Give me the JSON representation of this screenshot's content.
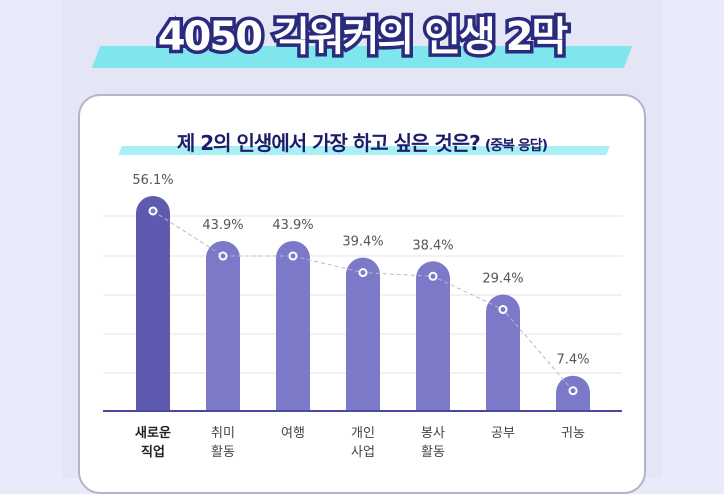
{
  "header": {
    "title": "4050 긱워커의 인생 2막"
  },
  "chart_data": {
    "type": "bar",
    "title": "제 2의 인생에서 가장 하고 싶은 것은?",
    "subtitle": "(중복 응답)",
    "categories": [
      [
        "새로운",
        "직업"
      ],
      [
        "취미",
        "활동"
      ],
      [
        "여행"
      ],
      [
        "개인",
        "사업"
      ],
      [
        "봉사",
        "활동"
      ],
      [
        "공부"
      ],
      [
        "귀농"
      ]
    ],
    "values": [
      56.1,
      43.9,
      43.9,
      39.4,
      38.4,
      29.4,
      7.4
    ],
    "value_labels": [
      "56.1%",
      "43.9%",
      "43.9%",
      "39.4%",
      "38.4%",
      "29.4%",
      "7.4%"
    ],
    "unit": "%",
    "ylim": [
      0,
      56.1
    ],
    "grid": true,
    "highlight_index": 0,
    "colors": {
      "bar": "#7b79c8",
      "bar_highlight": "#5e5ab0",
      "axis": "#4a4aa0",
      "grid": "#e4e4ee",
      "trend_line": "#b8b8cc"
    }
  }
}
